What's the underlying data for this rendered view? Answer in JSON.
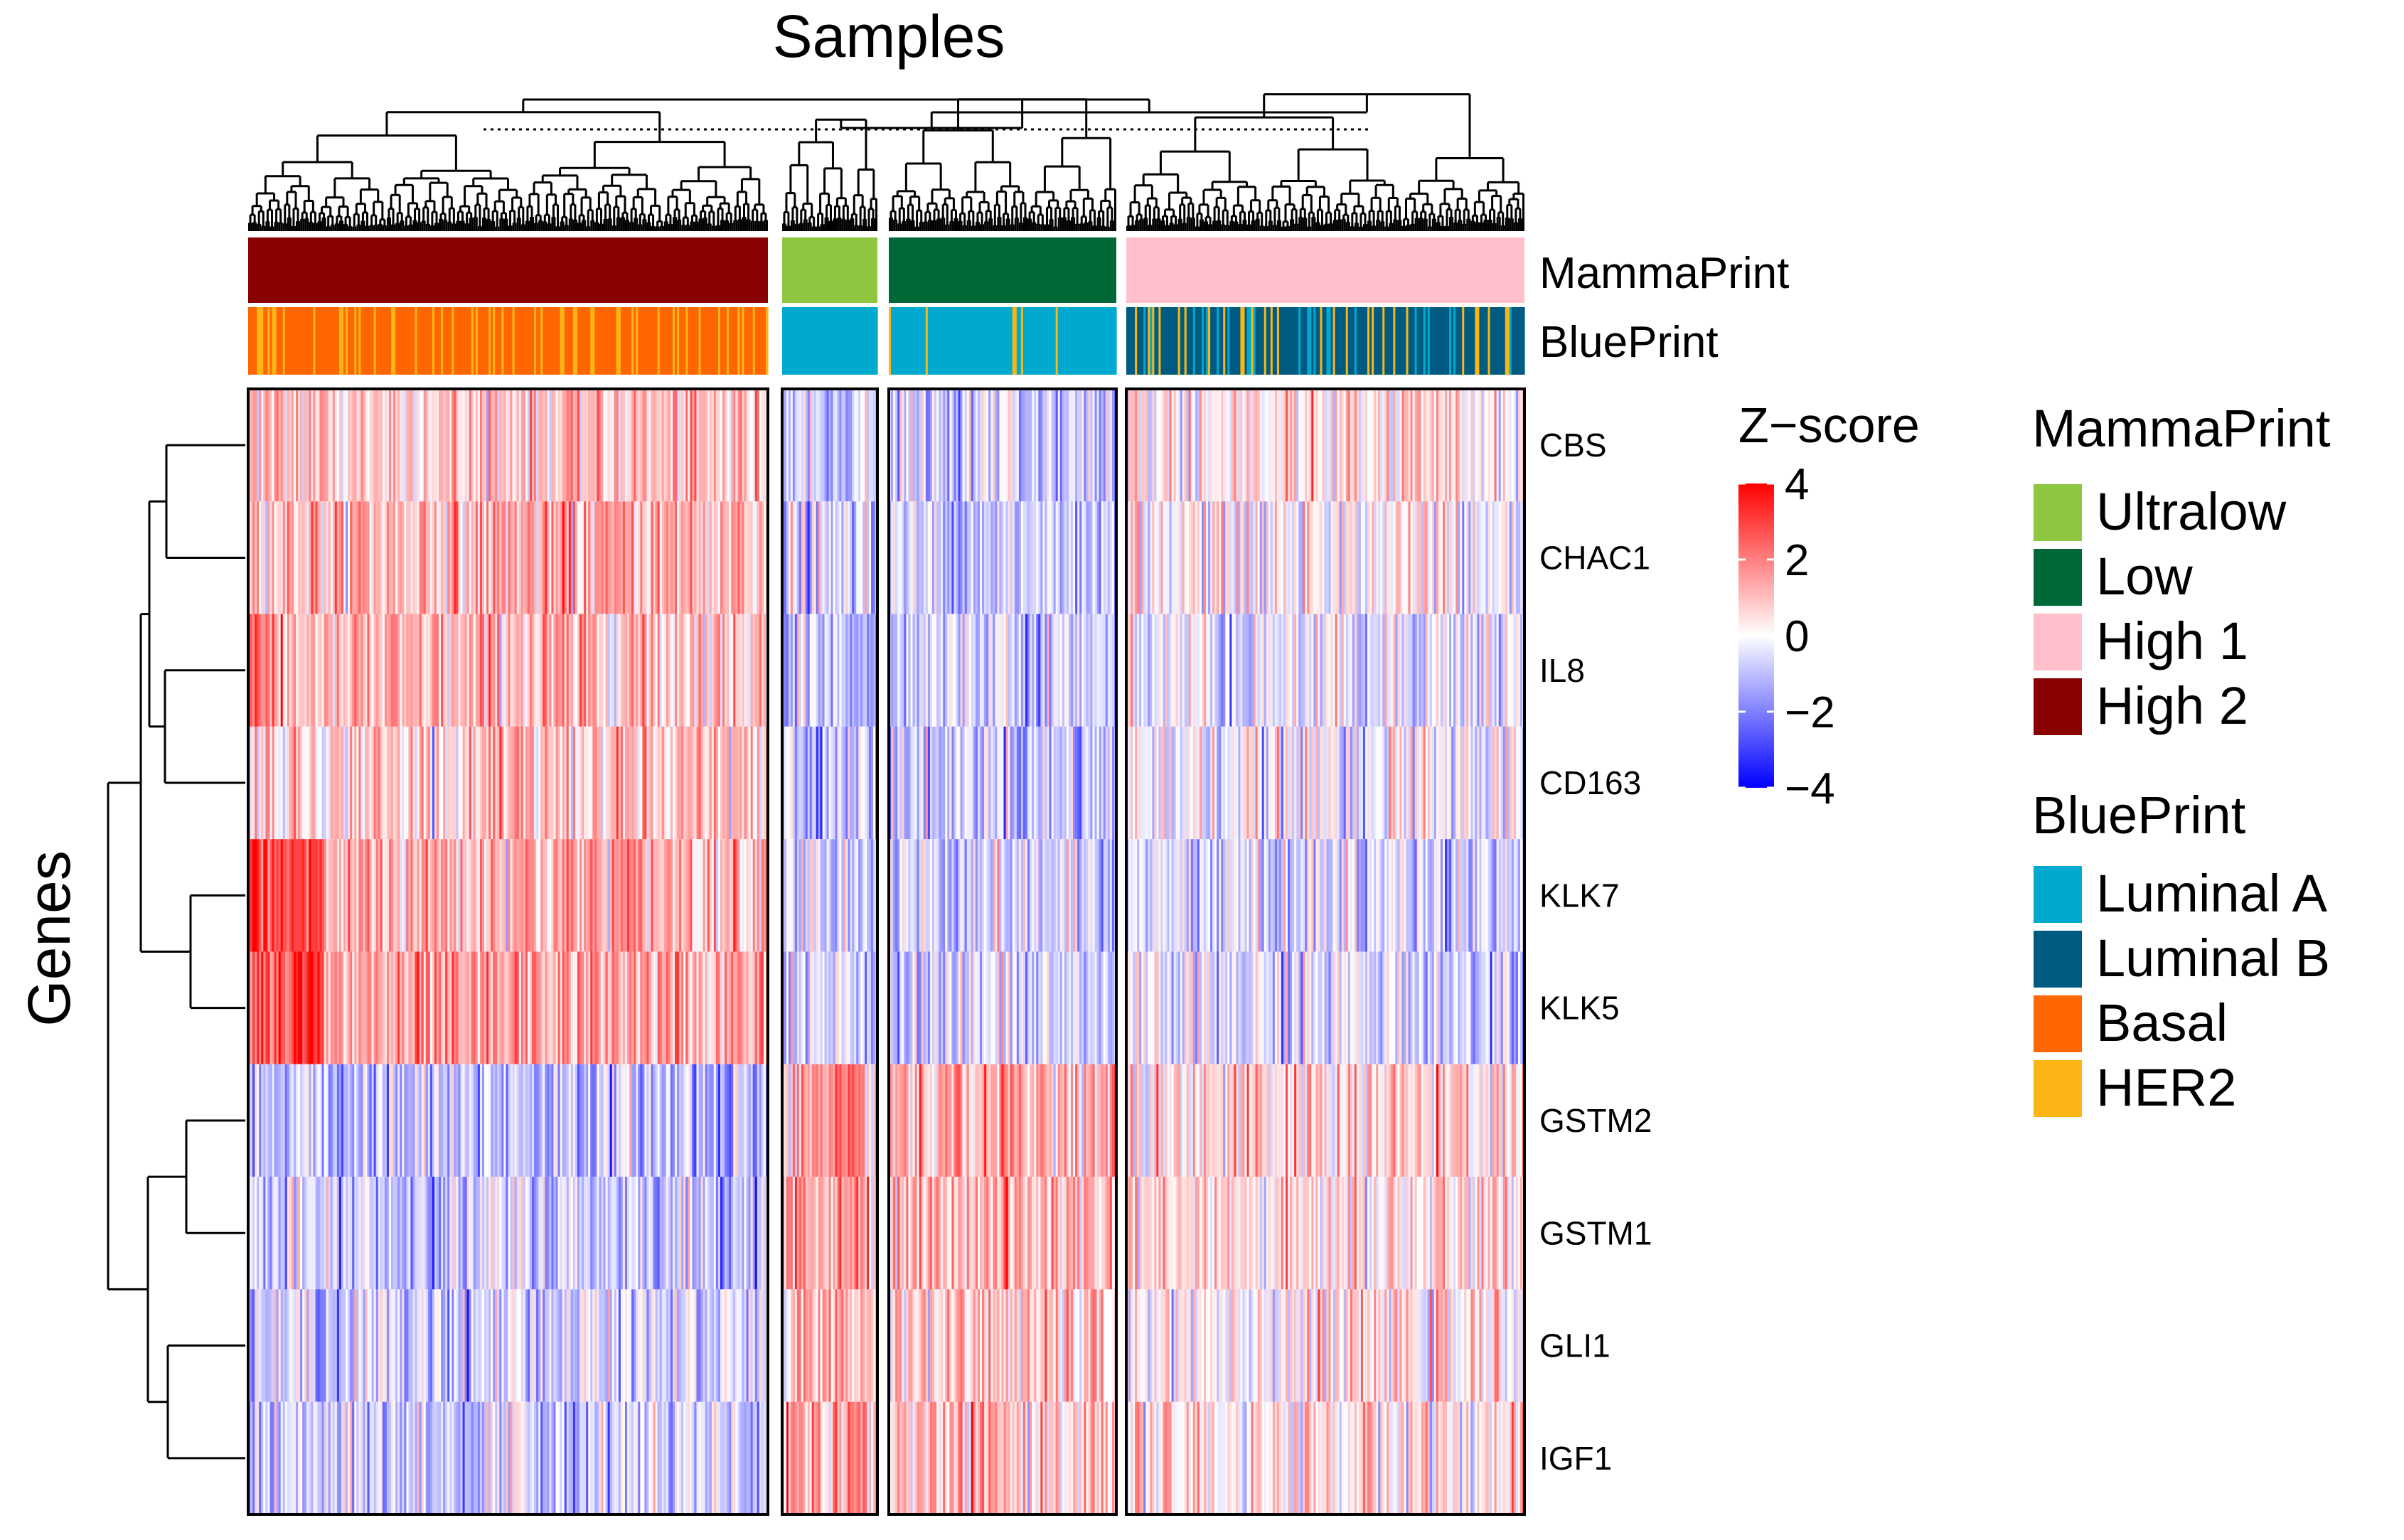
{
  "chart_data": {
    "type": "heatmap",
    "title": "Samples",
    "ylabel": "Genes",
    "genes": [
      "CBS",
      "CHAC1",
      "IL8",
      "CD163",
      "KLK7",
      "KLK5",
      "GSTM2",
      "GSTM1",
      "GLI1",
      "IGF1"
    ],
    "gene_order_note": "rows as displayed top to bottom",
    "clusters": [
      {
        "mammaprint": "High 2",
        "blueprint_mix": {
          "Basal": 0.8,
          "HER2": 0.2
        },
        "mean_z": [
          0.9,
          1.2,
          1.0,
          0.8,
          1.3,
          1.3,
          -1.0,
          -0.8,
          -0.7,
          -0.8
        ]
      },
      {
        "mammaprint": "Ultralow",
        "blueprint_mix": {
          "Luminal A": 1.0
        },
        "mean_z": [
          -0.8,
          -0.9,
          -1.0,
          -0.9,
          -0.7,
          -0.7,
          1.2,
          1.2,
          0.7,
          1.1
        ]
      },
      {
        "mammaprint": "Low",
        "blueprint_mix": {
          "Luminal A": 0.95,
          "HER2": 0.05
        },
        "mean_z": [
          -0.7,
          -0.8,
          -0.6,
          -0.8,
          -0.6,
          -0.7,
          1.3,
          1.2,
          0.8,
          0.9
        ]
      },
      {
        "mammaprint": "High 1",
        "blueprint_mix": {
          "Luminal B": 0.75,
          "HER2": 0.15,
          "Luminal A": 0.1
        },
        "mean_z": [
          0.3,
          0.1,
          -0.3,
          -0.2,
          -0.6,
          -0.6,
          0.6,
          0.4,
          0.3,
          0.4
        ]
      }
    ],
    "annotation_tracks": [
      "MammaPrint",
      "BluePrint"
    ],
    "colorbar": {
      "title": "Z−score",
      "range": [
        -4,
        4
      ],
      "ticks": [
        "4",
        "2",
        "0",
        "−2",
        "−4"
      ],
      "tick_values": [
        4,
        2,
        0,
        -2,
        -4
      ],
      "colors": {
        "low": "#0000FF",
        "mid": "#FFFFFF",
        "high": "#FF0000"
      }
    },
    "legends": {
      "mammaprint": {
        "title": "MammaPrint",
        "items": [
          {
            "label": "Ultralow",
            "color": "#8DC63F"
          },
          {
            "label": "Low",
            "color": "#006837"
          },
          {
            "label": "High 1",
            "color": "#FFC0CB"
          },
          {
            "label": "High 2",
            "color": "#8B0000"
          }
        ]
      },
      "blueprint": {
        "title": "BluePrint",
        "items": [
          {
            "label": "Luminal A",
            "color": "#00A9CE"
          },
          {
            "label": "Luminal B",
            "color": "#005B82"
          },
          {
            "label": "Basal",
            "color": "#FF6600"
          },
          {
            "label": "HER2",
            "color": "#FDB515"
          }
        ]
      }
    }
  }
}
